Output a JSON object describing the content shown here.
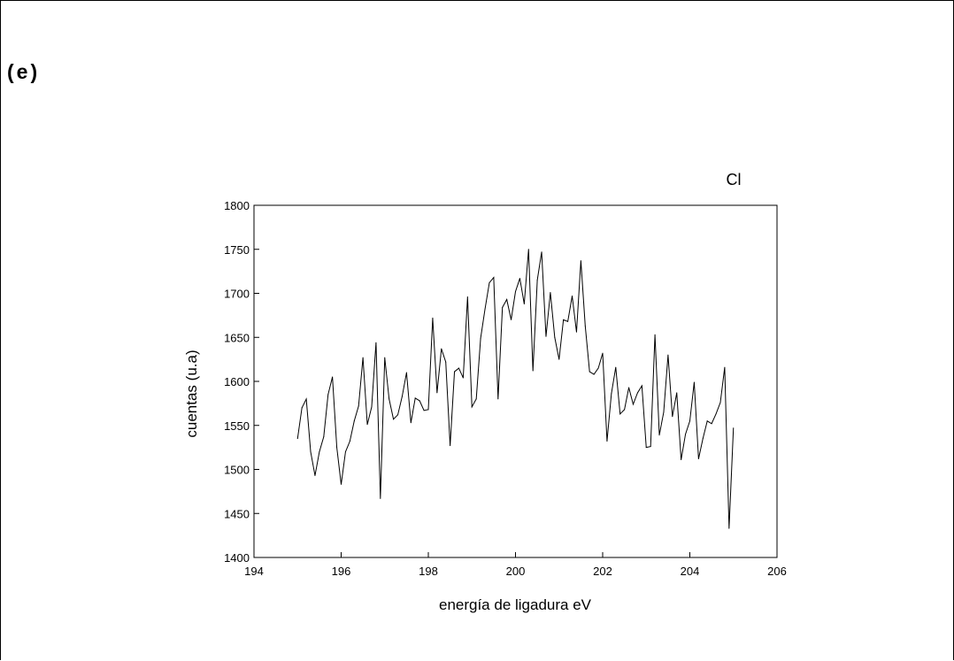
{
  "panel_label": "(e)",
  "chart_data": {
    "type": "line",
    "title": "Cl",
    "xlabel": "energía de ligadura eV",
    "ylabel": "cuentas (u.a)",
    "xlim": [
      194,
      206
    ],
    "ylim": [
      1400,
      1800
    ],
    "xticks": [
      194,
      196,
      198,
      200,
      202,
      204,
      206
    ],
    "yticks": [
      1400,
      1450,
      1500,
      1550,
      1600,
      1650,
      1700,
      1750,
      1800
    ],
    "grid": false,
    "line_color": "#000000",
    "series": [
      {
        "x": [
          195.0,
          195.1,
          195.2,
          195.3,
          195.4,
          195.5,
          195.6,
          195.7,
          195.8,
          195.9,
          196.0,
          196.1,
          196.2,
          196.3,
          196.4,
          196.5,
          196.6,
          196.7,
          196.8,
          196.9,
          197.0,
          197.1,
          197.2,
          197.3,
          197.4,
          197.5,
          197.6,
          197.7,
          197.8,
          197.9,
          198.0,
          198.1,
          198.2,
          198.3,
          198.4,
          198.5,
          198.6,
          198.7,
          198.8,
          198.9,
          199.0,
          199.1,
          199.2,
          199.3,
          199.4,
          199.5,
          199.6,
          199.7,
          199.8,
          199.9,
          200.0,
          200.1,
          200.2,
          200.3,
          200.4,
          200.5,
          200.6,
          200.7,
          200.8,
          200.9,
          201.0,
          201.1,
          201.2,
          201.3,
          201.4,
          201.5,
          201.6,
          201.7,
          201.8,
          201.9,
          202.0,
          202.1,
          202.2,
          202.3,
          202.4,
          202.5,
          202.6,
          202.7,
          202.8,
          202.9,
          203.0,
          203.1,
          203.2,
          203.3,
          203.4,
          203.5,
          203.6,
          203.7,
          203.8,
          203.9,
          204.0,
          204.1,
          204.2,
          204.3,
          204.4,
          204.5,
          204.6,
          204.7,
          204.8,
          204.9,
          205.0
        ],
        "y": [
          1535,
          1570,
          1580,
          1520,
          1493,
          1520,
          1537,
          1585,
          1605,
          1525,
          1483,
          1520,
          1532,
          1555,
          1572,
          1627,
          1551,
          1571,
          1644,
          1467,
          1627,
          1580,
          1557,
          1562,
          1583,
          1610,
          1553,
          1581,
          1578,
          1567,
          1568,
          1672,
          1587,
          1637,
          1622,
          1527,
          1611,
          1615,
          1604,
          1696,
          1571,
          1580,
          1649,
          1682,
          1712,
          1718,
          1580,
          1684,
          1693,
          1670,
          1702,
          1717,
          1688,
          1750,
          1612,
          1715,
          1747,
          1651,
          1701,
          1650,
          1625,
          1670,
          1668,
          1697,
          1656,
          1737,
          1663,
          1611,
          1608,
          1615,
          1632,
          1532,
          1586,
          1616,
          1563,
          1568,
          1593,
          1574,
          1587,
          1595,
          1525,
          1526,
          1653,
          1539,
          1565,
          1630,
          1560,
          1587,
          1511,
          1540,
          1555,
          1599,
          1512,
          1535,
          1555,
          1552,
          1563,
          1576,
          1616,
          1433,
          1547
        ]
      }
    ]
  }
}
